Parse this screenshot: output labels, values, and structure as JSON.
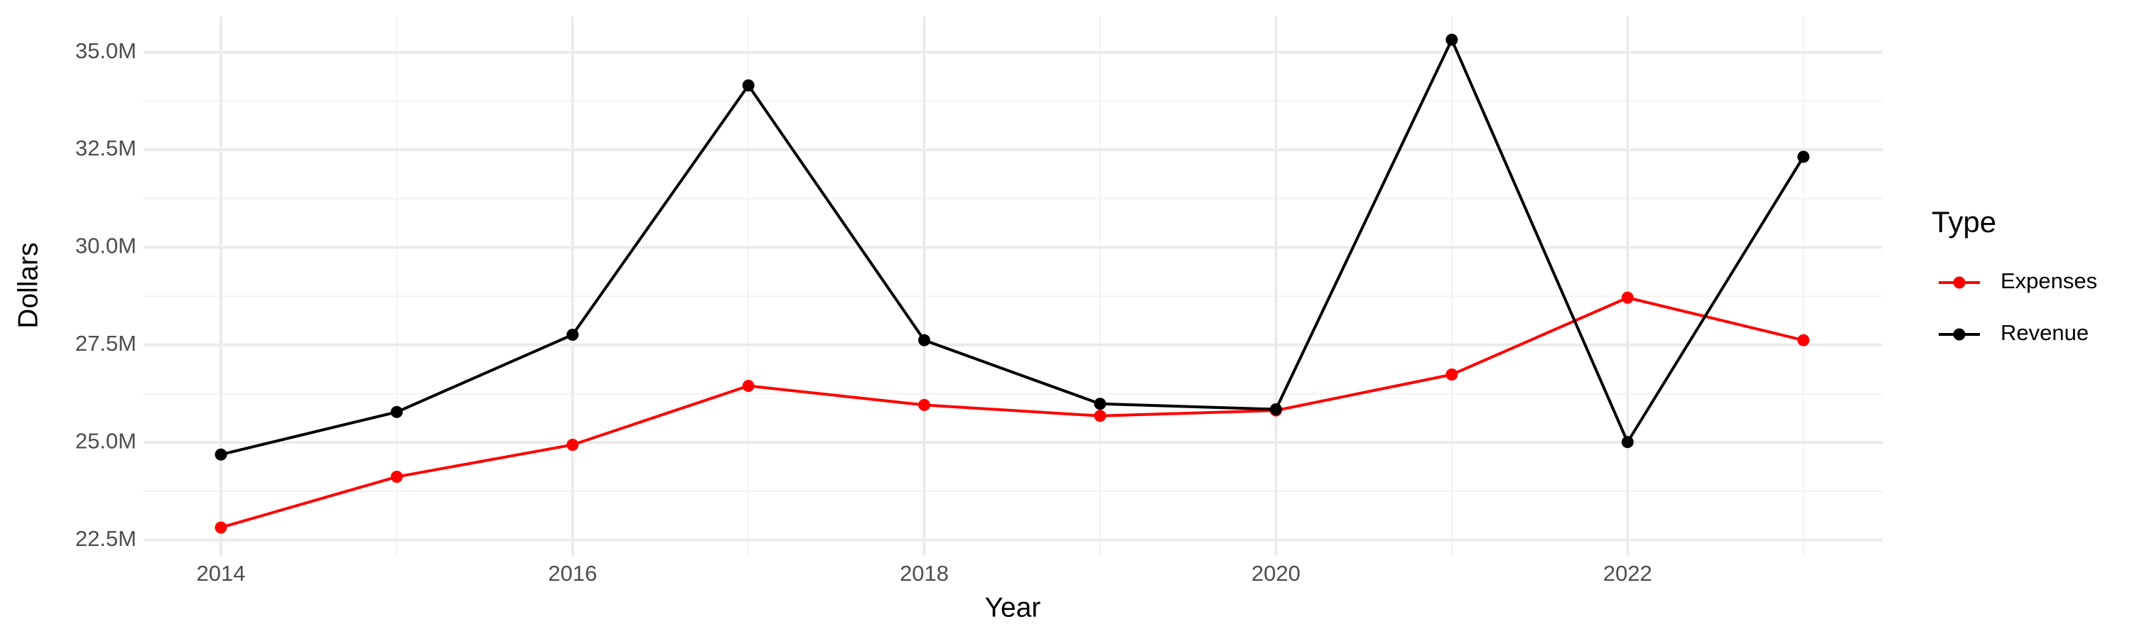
{
  "chart_data": {
    "type": "line",
    "x_label": "Year",
    "y_label": "Dollars",
    "legend_title": "Type",
    "x": [
      2014,
      2015,
      2016,
      2017,
      2018,
      2019,
      2020,
      2021,
      2022,
      2023
    ],
    "series": [
      {
        "name": "Expenses",
        "color": "#ff0000",
        "values": [
          22820000,
          24120000,
          24940000,
          26450000,
          25960000,
          25680000,
          25820000,
          26740000,
          28710000,
          27620000
        ]
      },
      {
        "name": "Revenue",
        "color": "#000000",
        "values": [
          24690000,
          25780000,
          27760000,
          34150000,
          27620000,
          25990000,
          25850000,
          35320000,
          25010000,
          32320000
        ]
      }
    ],
    "xlim": [
      2013.56,
      2023.45
    ],
    "xticks": [
      2014,
      2016,
      2018,
      2020,
      2022
    ],
    "ylim": [
      22110000,
      35920000
    ],
    "yticks": [
      {
        "value": 22500000,
        "label": "22.5M"
      },
      {
        "value": 25000000,
        "label": "25.0M"
      },
      {
        "value": 27500000,
        "label": "27.5M"
      },
      {
        "value": 30000000,
        "label": "30.0M"
      },
      {
        "value": 32500000,
        "label": "32.5M"
      },
      {
        "value": 35000000,
        "label": "35.0M"
      }
    ],
    "grid": true,
    "legend_position": "right"
  }
}
